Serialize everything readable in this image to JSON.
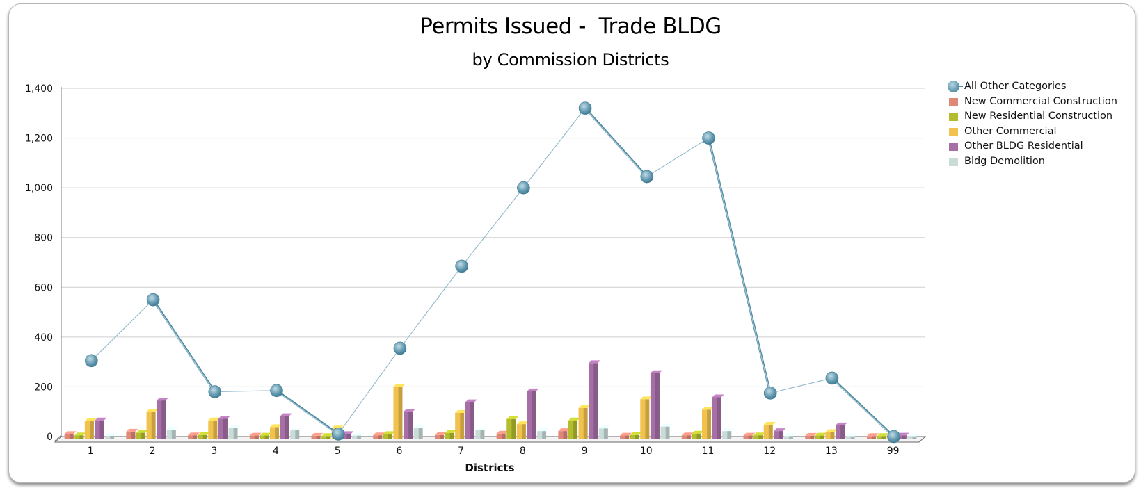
{
  "chart_data": {
    "type": "bar",
    "title": "Permits Issued -  Trade BLDG",
    "subtitle": "by Commission Districts",
    "xlabel": "Districts",
    "ylabel": "",
    "ylim": [
      0,
      1400
    ],
    "yticks": [
      0,
      200,
      400,
      600,
      800,
      1000,
      1200,
      1400
    ],
    "ytick_labels": [
      "0",
      "200",
      "400",
      "600",
      "800",
      "1,000",
      "1,200",
      "1,400"
    ],
    "categories": [
      "1",
      "2",
      "3",
      "4",
      "5",
      "6",
      "7",
      "8",
      "9",
      "10",
      "11",
      "12",
      "13",
      "99"
    ],
    "grid": true,
    "legend_position": "right",
    "series": [
      {
        "name": "New Commercial Construction",
        "kind": "bar",
        "color": "#e08878",
        "values": [
          10,
          20,
          5,
          4,
          3,
          5,
          6,
          12,
          22,
          4,
          5,
          4,
          3,
          2
        ]
      },
      {
        "name": "New Residential Construction",
        "kind": "bar",
        "color": "#b3bd2e",
        "values": [
          5,
          15,
          6,
          4,
          2,
          10,
          14,
          70,
          65,
          6,
          12,
          5,
          4,
          2
        ]
      },
      {
        "name": "Other Commercial",
        "kind": "bar",
        "color": "#f2c24e",
        "values": [
          62,
          100,
          65,
          38,
          33,
          200,
          95,
          50,
          115,
          150,
          108,
          48,
          18,
          3
        ]
      },
      {
        "name": "Other BLDG Residential",
        "kind": "bar",
        "color": "#a66fa6",
        "values": [
          65,
          145,
          72,
          82,
          10,
          100,
          138,
          182,
          295,
          255,
          158,
          22,
          45,
          4
        ]
      },
      {
        "name": "Bldg Demolition",
        "kind": "bar",
        "color": "#c9dcd7",
        "values": [
          3,
          28,
          36,
          25,
          4,
          35,
          25,
          22,
          33,
          40,
          22,
          2,
          1,
          1
        ]
      },
      {
        "name": "All Other Categories",
        "kind": "line",
        "color": "#5e95ab",
        "values": [
          305,
          550,
          180,
          185,
          10,
          355,
          685,
          1000,
          1320,
          1045,
          1200,
          175,
          235,
          0
        ]
      }
    ],
    "legend_order": [
      "All Other Categories",
      "New Commercial Construction",
      "New Residential Construction",
      "Other Commercial",
      "Other BLDG Residential",
      "Bldg Demolition"
    ]
  }
}
